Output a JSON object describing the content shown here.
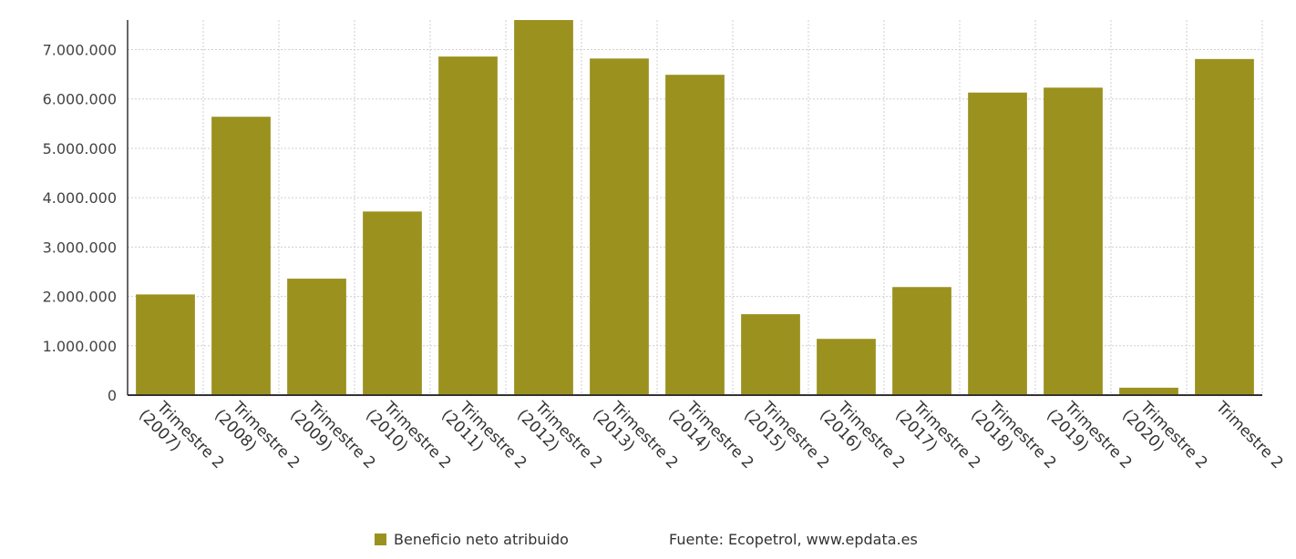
{
  "chart_data": {
    "type": "bar",
    "title": "",
    "xlabel": "",
    "ylabel": "",
    "categories": [
      "Trimestre 2 (2007)",
      "Trimestre 2 (2008)",
      "Trimestre 2 (2009)",
      "Trimestre 2 (2010)",
      "Trimestre 2 (2011)",
      "Trimestre 2 (2012)",
      "Trimestre 2 (2013)",
      "Trimestre 2 (2014)",
      "Trimestre 2 (2015)",
      "Trimestre 2 (2016)",
      "Trimestre 2 (2017)",
      "Trimestre 2 (2018)",
      "Trimestre 2 (2019)",
      "Trimestre 2 (2020)",
      "Trimestre 2"
    ],
    "series": [
      {
        "name": "Beneficio neto atribuido",
        "color": "#9b911f",
        "values": [
          2040000,
          5640000,
          2360000,
          3720000,
          6860000,
          7600000,
          6820000,
          6490000,
          1640000,
          1140000,
          2190000,
          6130000,
          6230000,
          150000,
          6810000
        ]
      }
    ],
    "ylim": [
      0,
      7600000
    ],
    "yticks": [
      0,
      1000000,
      2000000,
      3000000,
      4000000,
      5000000,
      6000000,
      7000000
    ],
    "ytick_labels": [
      "0",
      "1.000.000",
      "2.000.000",
      "3.000.000",
      "4.000.000",
      "5.000.000",
      "6.000.000",
      "7.000.000"
    ],
    "grid": true,
    "legend_position": "bottom"
  },
  "legend": {
    "series_label": "Beneficio neto atribuido",
    "source": "Fuente: Ecopetrol, www.epdata.es"
  }
}
